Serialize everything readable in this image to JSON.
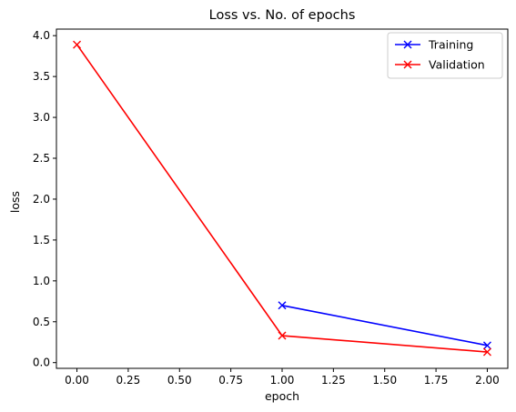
{
  "chart_data": {
    "type": "line",
    "title": "Loss vs. No. of epochs",
    "xlabel": "epoch",
    "ylabel": "loss",
    "xlim": [
      -0.1,
      2.1
    ],
    "ylim": [
      -0.07,
      4.08
    ],
    "xticks": [
      0.0,
      0.25,
      0.5,
      0.75,
      1.0,
      1.25,
      1.5,
      1.75,
      2.0
    ],
    "xtick_labels": [
      "0.00",
      "0.25",
      "0.50",
      "0.75",
      "1.00",
      "1.25",
      "1.50",
      "1.75",
      "2.00"
    ],
    "yticks": [
      0.0,
      0.5,
      1.0,
      1.5,
      2.0,
      2.5,
      3.0,
      3.5,
      4.0
    ],
    "ytick_labels": [
      "0.0",
      "0.5",
      "1.0",
      "1.5",
      "2.0",
      "2.5",
      "3.0",
      "3.5",
      "4.0"
    ],
    "grid": false,
    "legend_position": "top-right",
    "series": [
      {
        "name": "Training",
        "color": "#0000ff",
        "marker": "x",
        "x": [
          1.0,
          2.0
        ],
        "y": [
          0.7,
          0.21
        ]
      },
      {
        "name": "Validation",
        "color": "#ff0000",
        "marker": "x",
        "x": [
          0.0,
          1.0,
          2.0
        ],
        "y": [
          3.89,
          0.33,
          0.13
        ]
      }
    ]
  }
}
